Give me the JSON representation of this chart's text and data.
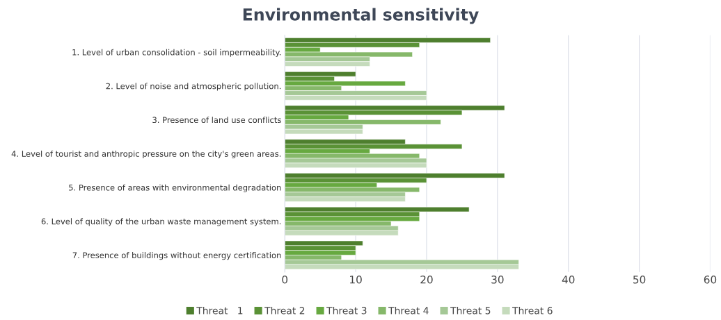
{
  "chart_data": {
    "type": "bar",
    "orientation": "horizontal",
    "title": "Environmental sensitivity",
    "categories": [
      "1. Level of urban consolidation - soil impermeability.",
      "2. Level of noise and atmospheric pollution.",
      "3. Presence of land use conflicts",
      "4. Level of tourist and anthropic pressure on the city's green areas.",
      "5. Presence of areas with environmental degradation",
      "6. Level of quality of the urban waste management system.",
      "7. Presence of buildings without energy certification"
    ],
    "series": [
      {
        "name": "Threat   1",
        "color": "#4e7f2e",
        "values": [
          29,
          10,
          31,
          17,
          31,
          26,
          11
        ]
      },
      {
        "name": "Threat 2",
        "color": "#5a9236",
        "values": [
          19,
          7,
          25,
          25,
          20,
          19,
          10
        ]
      },
      {
        "name": "Threat 3",
        "color": "#67a940",
        "values": [
          5,
          17,
          9,
          12,
          13,
          19,
          10
        ]
      },
      {
        "name": "Threat 4",
        "color": "#86b86a",
        "values": [
          18,
          8,
          22,
          19,
          19,
          15,
          8
        ]
      },
      {
        "name": "Threat 5",
        "color": "#a5c896",
        "values": [
          12,
          20,
          11,
          20,
          17,
          16,
          33
        ]
      },
      {
        "name": "Threat 6",
        "color": "#c5dbbc",
        "values": [
          12,
          20,
          11,
          20,
          17,
          16,
          33
        ]
      }
    ],
    "xlim": [
      0,
      60
    ],
    "xticks": [
      0,
      10,
      20,
      30,
      40,
      50,
      60
    ],
    "grid": "x",
    "legend": "bottom"
  }
}
